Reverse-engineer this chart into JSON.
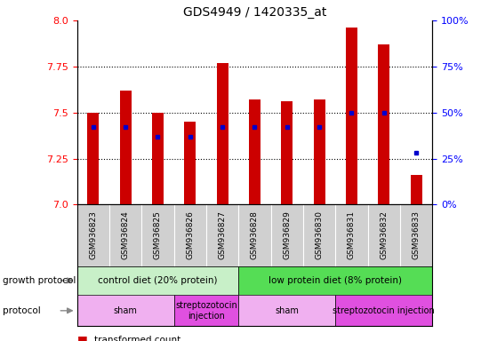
{
  "title": "GDS4949 / 1420335_at",
  "samples": [
    "GSM936823",
    "GSM936824",
    "GSM936825",
    "GSM936826",
    "GSM936827",
    "GSM936828",
    "GSM936829",
    "GSM936830",
    "GSM936831",
    "GSM936832",
    "GSM936833"
  ],
  "transformed_count": [
    7.5,
    7.62,
    7.5,
    7.45,
    7.77,
    7.57,
    7.56,
    7.57,
    7.96,
    7.87,
    7.16
  ],
  "percentile_rank_pct": [
    42,
    42,
    37,
    37,
    42,
    42,
    42,
    42,
    50,
    50,
    28
  ],
  "ylim_left": [
    7.0,
    8.0
  ],
  "ylim_right": [
    0,
    100
  ],
  "yticks_left": [
    7.0,
    7.25,
    7.5,
    7.75,
    8.0
  ],
  "yticks_right": [
    0,
    25,
    50,
    75,
    100
  ],
  "bar_color": "#cc0000",
  "dot_color": "#0000cc",
  "growth_protocol_groups": [
    {
      "label": "control diet (20% protein)",
      "start": 0,
      "end": 4,
      "color": "#c0f0c0"
    },
    {
      "label": "low protein diet (8% protein)",
      "start": 5,
      "end": 10,
      "color": "#44cc44"
    }
  ],
  "protocol_groups": [
    {
      "label": "sham",
      "start": 0,
      "end": 2,
      "color": "#f0b0f0"
    },
    {
      "label": "streptozotocin\ninjection",
      "start": 3,
      "end": 4,
      "color": "#e060e0"
    },
    {
      "label": "sham",
      "start": 5,
      "end": 7,
      "color": "#f0b0f0"
    },
    {
      "label": "streptozotocin injection",
      "start": 8,
      "end": 10,
      "color": "#e060e0"
    }
  ],
  "gray_color": "#d0d0d0",
  "bar_width": 0.35
}
